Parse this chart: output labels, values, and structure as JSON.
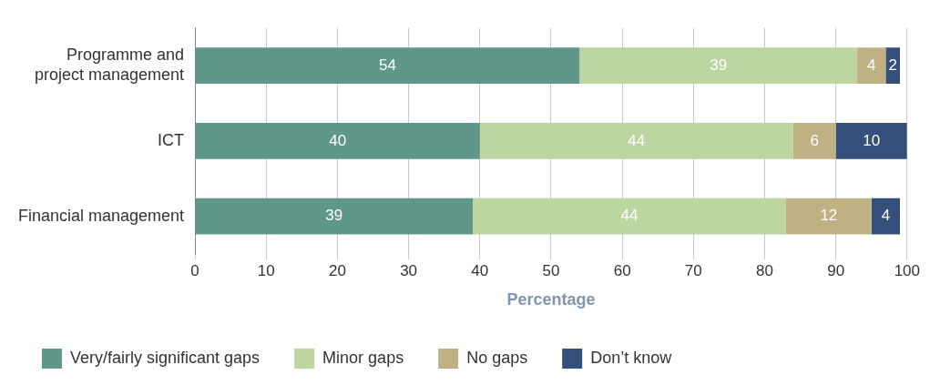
{
  "chart_data": {
    "type": "bar",
    "orientation": "horizontal",
    "stacked": true,
    "xlabel": "Percentage",
    "categories": [
      "Programme and project management",
      "ICT",
      "Financial management"
    ],
    "series": [
      {
        "name": "Very/fairly significant gaps",
        "color": "#5f978a",
        "values": [
          54,
          40,
          39
        ]
      },
      {
        "name": "Minor gaps",
        "color": "#bdd5a0",
        "values": [
          39,
          44,
          44
        ]
      },
      {
        "name": "No gaps",
        "color": "#bfb184",
        "values": [
          4,
          6,
          12
        ]
      },
      {
        "name": "Don’t know",
        "color": "#34507a",
        "values": [
          2,
          10,
          4
        ]
      }
    ],
    "xlim": [
      0,
      100
    ],
    "xticks": [
      0,
      10,
      20,
      30,
      40,
      50,
      60,
      70,
      80,
      90,
      100
    ],
    "grid": "x",
    "legend": "bottom left",
    "data_labels": true
  }
}
